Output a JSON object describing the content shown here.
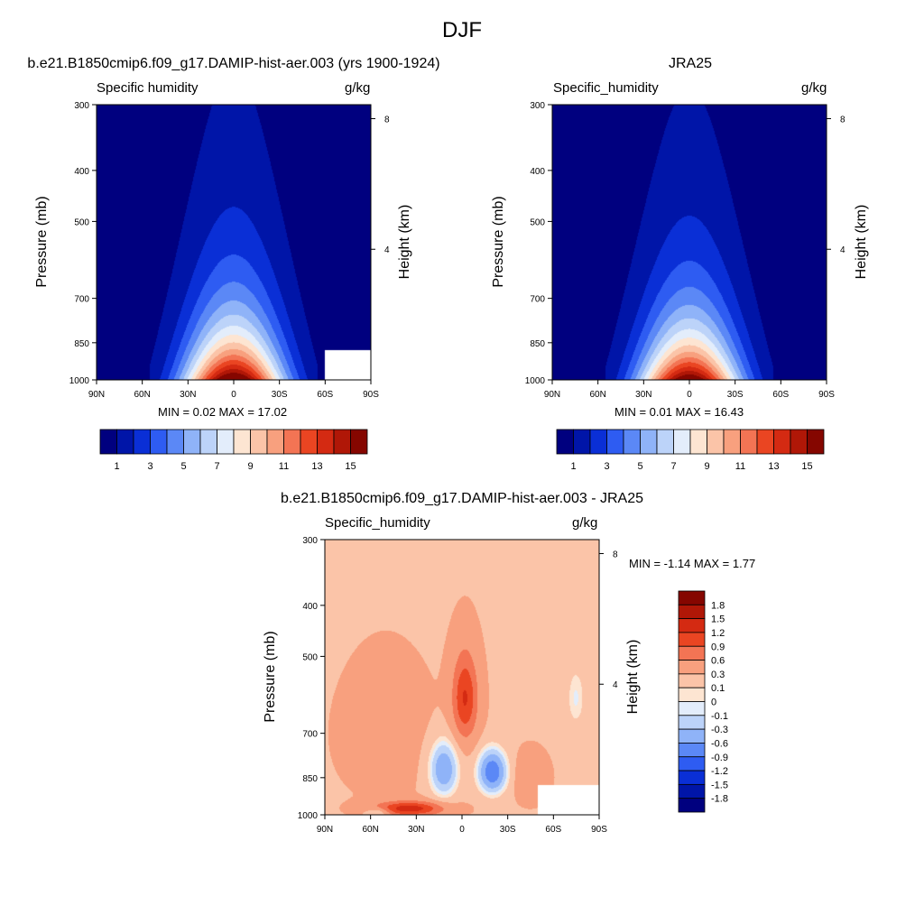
{
  "figure": {
    "title": "DJF"
  },
  "panels": [
    {
      "title": "b.e21.B1850cmip6.f09_g17.DAMIP-hist-aer.003 (yrs 1900-1924)",
      "field_label": "Specific humidity",
      "units": "g/kg",
      "ylabel_left": "Pressure (mb)",
      "ylabel_right": "Height (km)",
      "minmax_text": "MIN =   0.02  MAX =  17.02"
    },
    {
      "title": "JRA25",
      "field_label": "Specific_humidity",
      "units": "g/kg",
      "ylabel_left": "Pressure (mb)",
      "ylabel_right": "Height (km)",
      "minmax_text": "MIN =   0.01  MAX =  16.43"
    },
    {
      "title": "b.e21.B1850cmip6.f09_g17.DAMIP-hist-aer.003 - JRA25",
      "field_label": "Specific_humidity",
      "units": "g/kg",
      "ylabel_left": "Pressure (mb)",
      "ylabel_right": "Height (km)",
      "minmax_text": "MIN =  -1.14  MAX =   1.77"
    }
  ],
  "chart_data": [
    {
      "type": "heatmap",
      "title": "b.e21.B1850cmip6.f09_g17.DAMIP-hist-aer.003 (yrs 1900-1924)",
      "field": "Specific humidity",
      "units": "g/kg",
      "x_ticks": [
        "90N",
        "60N",
        "30N",
        "0",
        "30S",
        "60S",
        "90S"
      ],
      "x_values": [
        90,
        60,
        30,
        0,
        -30,
        -60,
        -90
      ],
      "y_ticks": [
        300,
        400,
        500,
        700,
        850,
        1000
      ],
      "y_scale": "log",
      "ylim": [
        1000,
        300
      ],
      "right_ticks": [
        4,
        8
      ],
      "ylabel": "Pressure (mb)",
      "ylabel_right": "Height (km)",
      "min": 0.02,
      "max": 17.02,
      "colorbar_labels": [
        "1",
        "3",
        "5",
        "7",
        "9",
        "11",
        "13",
        "15"
      ],
      "colorbar_colors": [
        "#00007f",
        "#0015a8",
        "#0a2fd6",
        "#2e5cf2",
        "#5b88f6",
        "#8fb3f8",
        "#bcd3f9",
        "#e3edfb",
        "#fde5d2",
        "#fbc4a8",
        "#f8a07e",
        "#f37454",
        "#ea4522",
        "#d42a12",
        "#b01707",
        "#850600"
      ],
      "peak": {
        "lat": 0,
        "pressure": 1000,
        "value": 17.02
      },
      "missing_region": {
        "lat_from": -60,
        "lat_to": -90,
        "pressure_from": 880,
        "pressure_to": 1000
      }
    },
    {
      "type": "heatmap",
      "title": "JRA25",
      "field": "Specific_humidity",
      "units": "g/kg",
      "x_ticks": [
        "90N",
        "60N",
        "30N",
        "0",
        "30S",
        "60S",
        "90S"
      ],
      "x_values": [
        90,
        60,
        30,
        0,
        -30,
        -60,
        -90
      ],
      "y_ticks": [
        300,
        400,
        500,
        700,
        850,
        1000
      ],
      "y_scale": "log",
      "ylim": [
        1000,
        300
      ],
      "right_ticks": [
        4,
        8
      ],
      "ylabel": "Pressure (mb)",
      "ylabel_right": "Height (km)",
      "min": 0.01,
      "max": 16.43,
      "colorbar_labels": [
        "1",
        "3",
        "5",
        "7",
        "9",
        "11",
        "13",
        "15"
      ],
      "colorbar_colors": [
        "#00007f",
        "#0015a8",
        "#0a2fd6",
        "#2e5cf2",
        "#5b88f6",
        "#8fb3f8",
        "#bcd3f9",
        "#e3edfb",
        "#fde5d2",
        "#fbc4a8",
        "#f8a07e",
        "#f37454",
        "#ea4522",
        "#d42a12",
        "#b01707",
        "#850600"
      ],
      "peak": {
        "lat": 0,
        "pressure": 1000,
        "value": 16.43
      }
    },
    {
      "type": "heatmap",
      "title": "b.e21.B1850cmip6.f09_g17.DAMIP-hist-aer.003 - JRA25",
      "field": "Specific_humidity",
      "units": "g/kg",
      "x_ticks": [
        "90N",
        "60N",
        "30N",
        "0",
        "30S",
        "60S",
        "90S"
      ],
      "x_values": [
        90,
        60,
        30,
        0,
        -30,
        -60,
        -90
      ],
      "y_ticks": [
        300,
        400,
        500,
        700,
        850,
        1000
      ],
      "y_scale": "log",
      "ylim": [
        1000,
        300
      ],
      "right_ticks": [
        4,
        8
      ],
      "ylabel": "Pressure (mb)",
      "ylabel_right": "Height (km)",
      "min": -1.14,
      "max": 1.77,
      "colorbar_labels": [
        "1.8",
        "1.5",
        "1.2",
        "0.9",
        "0.6",
        "0.3",
        "0.1",
        "0",
        "-0.1",
        "-0.3",
        "-0.6",
        "-0.9",
        "-1.2",
        "-1.5",
        "-1.8"
      ],
      "colorbar_colors": [
        "#850600",
        "#b01707",
        "#d42a12",
        "#ea4522",
        "#f37454",
        "#f8a07e",
        "#fbc4a8",
        "#fde5d2",
        "#e3edfb",
        "#bcd3f9",
        "#8fb3f8",
        "#5b88f6",
        "#2e5cf2",
        "#0a2fd6",
        "#0015a8",
        "#00007f"
      ],
      "positive_maximum_region": {
        "lat": -2,
        "pressure_range": [
          480,
          720
        ],
        "value": 0.9
      },
      "negative_minimum_region": {
        "lat": -20,
        "pressure_range": [
          760,
          900
        ],
        "value": -1.14
      },
      "missing_region": {
        "lat_from": -50,
        "lat_to": -90,
        "pressure_from": 880,
        "pressure_to": 1000
      }
    }
  ]
}
